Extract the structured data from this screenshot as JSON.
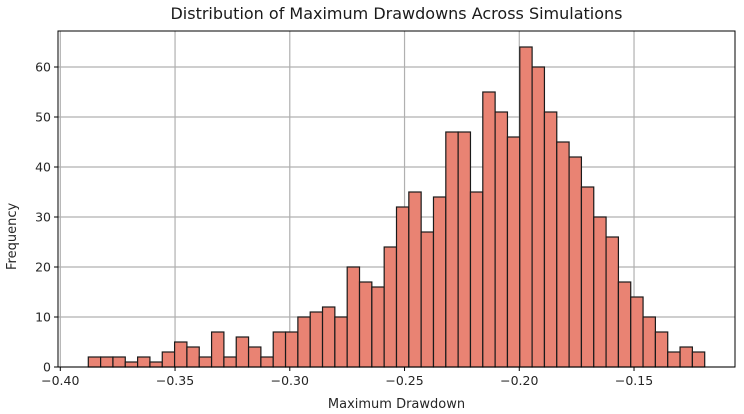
{
  "chart_data": {
    "type": "bar",
    "subtype": "histogram",
    "title": "Distribution of Maximum Drawdowns Across Simulations",
    "xlabel": "Maximum Drawdown",
    "ylabel": "Frequency",
    "bins": 50,
    "bin_start": -0.3878,
    "bin_end": -0.1192,
    "xlim": [
      -0.401,
      -0.106
    ],
    "ylim": [
      0,
      67.2
    ],
    "x_ticks": [
      -0.4,
      -0.35,
      -0.3,
      -0.25,
      -0.2,
      -0.15
    ],
    "x_tick_labels": [
      "−0.40",
      "−0.35",
      "−0.30",
      "−0.25",
      "−0.20",
      "−0.15"
    ],
    "y_ticks": [
      0,
      10,
      20,
      30,
      40,
      50,
      60
    ],
    "y_tick_labels": [
      "0",
      "10",
      "20",
      "30",
      "40",
      "50",
      "60"
    ],
    "grid": true,
    "legend": null,
    "bar_color": "#e98373",
    "edge_color": "#1a1a1a",
    "values": [
      2,
      2,
      2,
      1,
      2,
      1,
      3,
      5,
      4,
      2,
      7,
      2,
      6,
      4,
      2,
      7,
      7,
      10,
      11,
      12,
      10,
      20,
      17,
      16,
      24,
      32,
      35,
      27,
      34,
      47,
      47,
      35,
      55,
      51,
      46,
      64,
      60,
      51,
      45,
      42,
      36,
      30,
      26,
      17,
      14,
      10,
      7,
      3,
      4,
      3
    ]
  },
  "labels": {
    "title": "Distribution of Maximum Drawdowns Across Simulations",
    "xlabel": "Maximum Drawdown",
    "ylabel": "Frequency"
  }
}
